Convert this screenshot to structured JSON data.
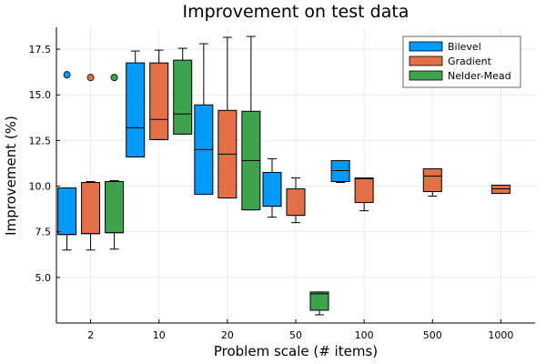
{
  "chart_data": {
    "type": "boxplot",
    "title": "Improvement on test data",
    "xlabel": "Problem scale (# items)",
    "ylabel": "Improvement (%)",
    "categories": [
      "2",
      "10",
      "20",
      "50",
      "100",
      "500",
      "1000"
    ],
    "ylim": [
      2.5,
      18.7
    ],
    "yticks": [
      5.0,
      7.5,
      10.0,
      12.5,
      15.0,
      17.5
    ],
    "ytick_labels": [
      "5.0",
      "7.5",
      "10.0",
      "12.5",
      "15.0",
      "17.5"
    ],
    "grid": true,
    "legend_position": "top-right",
    "series": [
      {
        "name": "Bilevel",
        "color": "#009AFA",
        "boxes": [
          {
            "category": "2",
            "whisker_low": 6.5,
            "q1": 7.35,
            "median": 7.35,
            "q3": 9.9,
            "whisker_high": 9.9,
            "outliers": [
              16.1
            ]
          },
          {
            "category": "10",
            "whisker_low": 11.6,
            "q1": 11.6,
            "median": 13.2,
            "q3": 16.75,
            "whisker_high": 17.4,
            "outliers": []
          },
          {
            "category": "20",
            "whisker_low": 9.55,
            "q1": 9.55,
            "median": 12.0,
            "q3": 14.45,
            "whisker_high": 17.8,
            "outliers": []
          },
          {
            "category": "50",
            "whisker_low": 8.3,
            "q1": 8.9,
            "median": 8.9,
            "q3": 10.75,
            "whisker_high": 11.5,
            "outliers": []
          },
          {
            "category": "100",
            "whisker_low": 10.2,
            "q1": 10.25,
            "median": 10.85,
            "q3": 11.4,
            "whisker_high": 11.4,
            "outliers": []
          }
        ]
      },
      {
        "name": "Gradient",
        "color": "#E36F47",
        "boxes": [
          {
            "category": "2",
            "whisker_low": 6.5,
            "q1": 7.4,
            "median": 7.4,
            "q3": 10.2,
            "whisker_high": 10.25,
            "outliers": [
              15.95
            ]
          },
          {
            "category": "10",
            "whisker_low": 12.55,
            "q1": 12.55,
            "median": 13.65,
            "q3": 16.75,
            "whisker_high": 17.45,
            "outliers": []
          },
          {
            "category": "20",
            "whisker_low": 9.35,
            "q1": 9.35,
            "median": 11.75,
            "q3": 14.15,
            "whisker_high": 18.15,
            "outliers": []
          },
          {
            "category": "50",
            "whisker_low": 8.0,
            "q1": 8.4,
            "median": 8.4,
            "q3": 9.85,
            "whisker_high": 10.45,
            "outliers": []
          },
          {
            "category": "100",
            "whisker_low": 8.65,
            "q1": 9.1,
            "median": 10.4,
            "q3": 10.45,
            "whisker_high": 10.45,
            "outliers": []
          },
          {
            "category": "500",
            "whisker_low": 9.45,
            "q1": 9.7,
            "median": 10.55,
            "q3": 10.95,
            "whisker_high": 10.95,
            "outliers": []
          },
          {
            "category": "1000",
            "whisker_low": 9.6,
            "q1": 9.6,
            "median": 9.85,
            "q3": 10.05,
            "whisker_high": 10.05,
            "outliers": []
          }
        ]
      },
      {
        "name": "Nelder-Mead",
        "color": "#3DA44D",
        "boxes": [
          {
            "category": "2",
            "whisker_low": 6.55,
            "q1": 7.45,
            "median": 7.45,
            "q3": 10.25,
            "whisker_high": 10.3,
            "outliers": [
              15.95
            ]
          },
          {
            "category": "10",
            "whisker_low": 12.85,
            "q1": 12.85,
            "median": 13.95,
            "q3": 16.9,
            "whisker_high": 17.55,
            "outliers": []
          },
          {
            "category": "20",
            "whisker_low": 8.7,
            "q1": 8.7,
            "median": 11.4,
            "q3": 14.1,
            "whisker_high": 18.2,
            "outliers": []
          },
          {
            "category": "50",
            "whisker_low": 2.95,
            "q1": 3.2,
            "median": 4.1,
            "q3": 4.2,
            "whisker_high": 4.2,
            "outliers": []
          }
        ]
      }
    ]
  }
}
